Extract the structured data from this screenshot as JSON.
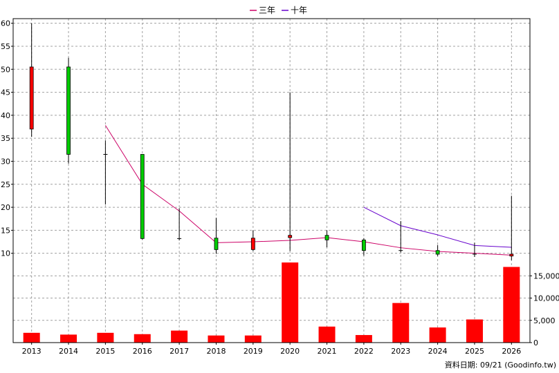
{
  "chart_data": {
    "type": "candlestick+bar",
    "categories": [
      "2013",
      "2014",
      "2015",
      "2016",
      "2017",
      "2018",
      "2019",
      "2020",
      "2021",
      "2022",
      "2023",
      "2024",
      "2025",
      "2026"
    ],
    "legend": [
      "三年",
      "十年"
    ],
    "colors": {
      "up": "#00cc00",
      "down": "#ff0000",
      "ma3": "#cc0066",
      "ma10": "#6600cc",
      "volume": "#ff0000",
      "grid": "#a0a0a0"
    },
    "price": {
      "ylim": [
        8,
        61
      ],
      "ticks": [
        10,
        15,
        20,
        25,
        30,
        35,
        40,
        45,
        50,
        55,
        60
      ],
      "candles": [
        {
          "open": 37.0,
          "close": 50.5,
          "high": 60.0,
          "low": 35.3,
          "color": "down"
        },
        {
          "open": 50.5,
          "close": 31.5,
          "high": 52.5,
          "low": 29.5,
          "color": "up"
        },
        {
          "open": 31.5,
          "close": 31.5,
          "high": 34.5,
          "low": 20.6,
          "color": "flat"
        },
        {
          "open": 31.5,
          "close": 13.2,
          "high": 31.5,
          "low": 13.0,
          "color": "up"
        },
        {
          "open": 13.2,
          "close": 13.2,
          "high": 19.8,
          "low": 12.8,
          "color": "flat"
        },
        {
          "open": 13.3,
          "close": 10.8,
          "high": 17.7,
          "low": 9.9,
          "color": "up"
        },
        {
          "open": 10.8,
          "close": 13.3,
          "high": 15.0,
          "low": 10.5,
          "color": "down"
        },
        {
          "open": 13.4,
          "close": 13.9,
          "high": 45.0,
          "low": 10.5,
          "color": "down"
        },
        {
          "open": 13.9,
          "close": 12.9,
          "high": 15.0,
          "low": 11.3,
          "color": "up"
        },
        {
          "open": 12.9,
          "close": 10.6,
          "high": 13.3,
          "low": 9.5,
          "color": "up"
        },
        {
          "open": 10.6,
          "close": 10.6,
          "high": 17.0,
          "low": 10.2,
          "color": "flat"
        },
        {
          "open": 10.6,
          "close": 9.8,
          "high": 11.8,
          "low": 9.4,
          "color": "up"
        },
        {
          "open": 9.8,
          "close": 9.8,
          "high": 12.3,
          "low": 9.2,
          "color": "flat"
        },
        {
          "open": 9.4,
          "close": 9.8,
          "high": 22.5,
          "low": 8.5,
          "color": "down"
        }
      ],
      "ma3": [
        null,
        null,
        37.8,
        25.0,
        19.2,
        12.3,
        12.5,
        12.8,
        13.4,
        12.5,
        11.2,
        10.4,
        10.0,
        9.6
      ],
      "ma10": [
        null,
        null,
        null,
        null,
        null,
        null,
        null,
        null,
        null,
        20.0,
        16.0,
        14.0,
        11.7,
        11.3
      ]
    },
    "volume": {
      "ylim": [
        0,
        18000
      ],
      "ticks": [
        0,
        5000,
        10000,
        15000
      ],
      "tick_labels": [
        "0",
        "5,000",
        "10,000",
        "15,000"
      ],
      "values": [
        2200,
        1800,
        2200,
        1900,
        2700,
        1600,
        1600,
        18000,
        3600,
        1700,
        8900,
        3400,
        5200,
        17000
      ]
    },
    "source": "資料日期: 09/21  (Goodinfo.tw)"
  }
}
